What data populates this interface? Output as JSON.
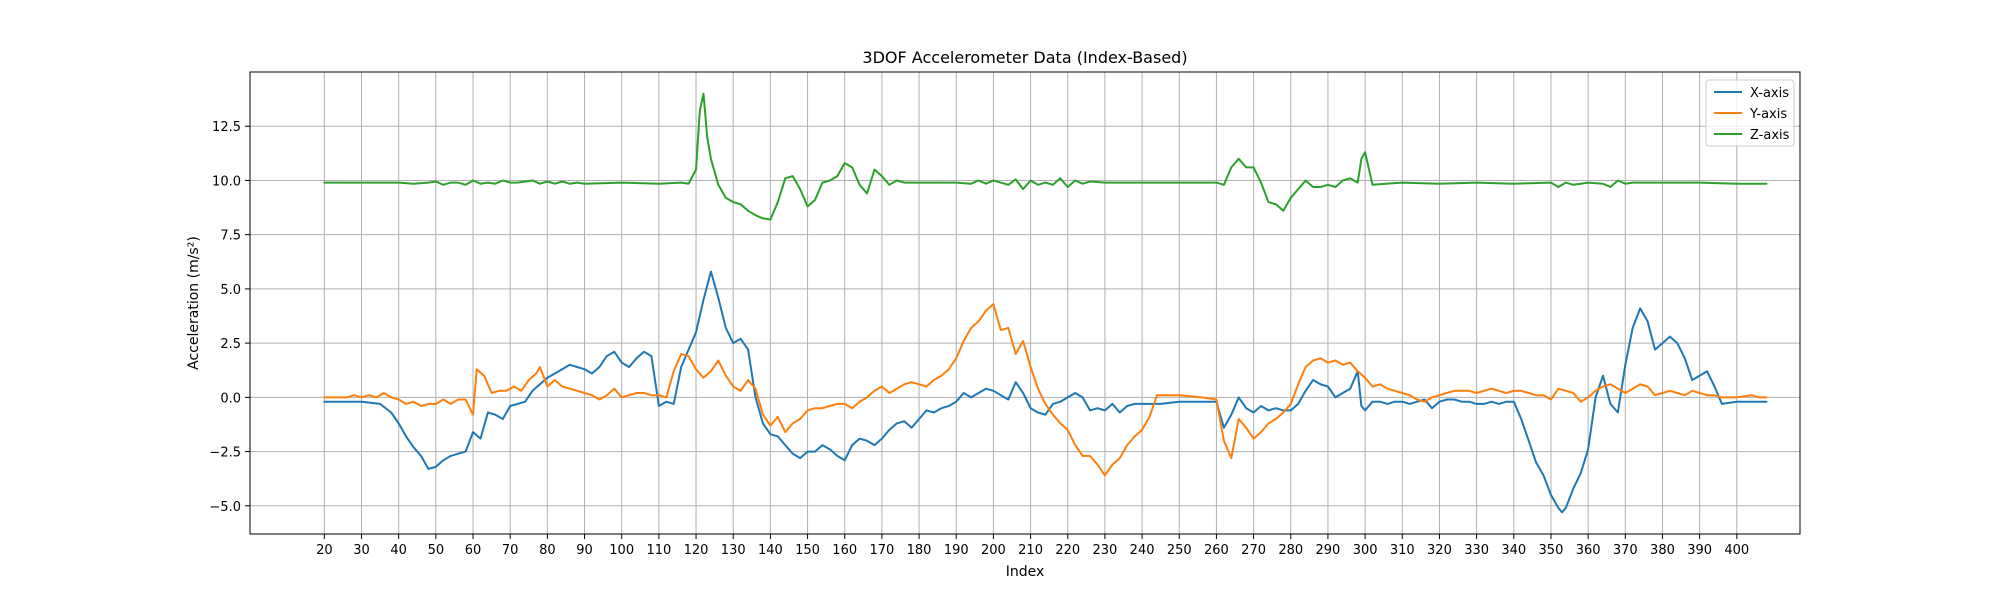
{
  "chart_data": {
    "type": "line",
    "title": "3DOF Accelerometer Data (Index-Based)",
    "xlabel": "Index",
    "ylabel": "Acceleration (m/s²)",
    "xlim": [
      0,
      417
    ],
    "ylim": [
      -6.3,
      15.0
    ],
    "xticks": [
      20,
      30,
      40,
      50,
      60,
      70,
      80,
      90,
      100,
      110,
      120,
      130,
      140,
      150,
      160,
      170,
      180,
      190,
      200,
      210,
      220,
      230,
      240,
      250,
      260,
      270,
      280,
      290,
      300,
      310,
      320,
      330,
      340,
      350,
      360,
      370,
      380,
      390,
      400
    ],
    "yticks": [
      -5.0,
      -2.5,
      0.0,
      2.5,
      5.0,
      7.5,
      10.0,
      12.5
    ],
    "ytick_labels": [
      "−5.0",
      "−2.5",
      "0.0",
      "2.5",
      "5.0",
      "7.5",
      "10.0",
      "12.5"
    ],
    "grid": true,
    "legend_position": "upper right",
    "series": [
      {
        "name": "X-axis",
        "color": "#1f77b4",
        "x": [
          20,
          30,
          35,
          38,
          40,
          42,
          44,
          46,
          48,
          50,
          52,
          54,
          56,
          58,
          60,
          62,
          64,
          66,
          68,
          70,
          72,
          74,
          76,
          78,
          80,
          82,
          84,
          86,
          88,
          90,
          92,
          94,
          96,
          98,
          100,
          102,
          104,
          106,
          108,
          110,
          112,
          114,
          116,
          118,
          120,
          122,
          124,
          126,
          128,
          130,
          132,
          134,
          136,
          138,
          140,
          142,
          144,
          146,
          148,
          150,
          152,
          154,
          156,
          158,
          160,
          162,
          164,
          166,
          168,
          170,
          172,
          174,
          176,
          178,
          180,
          182,
          184,
          186,
          188,
          190,
          192,
          194,
          196,
          198,
          200,
          202,
          204,
          206,
          208,
          210,
          212,
          214,
          216,
          218,
          220,
          222,
          224,
          226,
          228,
          230,
          232,
          234,
          236,
          238,
          240,
          245,
          250,
          255,
          260,
          262,
          264,
          266,
          268,
          270,
          272,
          274,
          276,
          278,
          280,
          282,
          284,
          286,
          288,
          290,
          292,
          294,
          296,
          298,
          299,
          300,
          302,
          304,
          306,
          308,
          310,
          312,
          314,
          316,
          318,
          320,
          322,
          324,
          326,
          328,
          330,
          332,
          334,
          336,
          338,
          340,
          342,
          344,
          346,
          348,
          350,
          352,
          353,
          354,
          356,
          358,
          360,
          362,
          364,
          366,
          368,
          370,
          372,
          374,
          376,
          378,
          380,
          382,
          384,
          386,
          388,
          390,
          392,
          394,
          396,
          400,
          408
        ],
        "values": [
          -0.2,
          -0.2,
          -0.3,
          -0.7,
          -1.2,
          -1.8,
          -2.3,
          -2.7,
          -3.3,
          -3.2,
          -2.9,
          -2.7,
          -2.6,
          -2.5,
          -1.6,
          -1.9,
          -0.7,
          -0.8,
          -1.0,
          -0.4,
          -0.3,
          -0.2,
          0.3,
          0.6,
          0.9,
          1.1,
          1.3,
          1.5,
          1.4,
          1.3,
          1.1,
          1.4,
          1.9,
          2.1,
          1.6,
          1.4,
          1.8,
          2.1,
          1.9,
          -0.4,
          -0.2,
          -0.3,
          1.4,
          2.2,
          3.0,
          4.5,
          5.8,
          4.6,
          3.2,
          2.5,
          2.7,
          2.2,
          0.0,
          -1.2,
          -1.7,
          -1.8,
          -2.2,
          -2.6,
          -2.8,
          -2.5,
          -2.5,
          -2.2,
          -2.4,
          -2.7,
          -2.9,
          -2.2,
          -1.9,
          -2.0,
          -2.2,
          -1.9,
          -1.5,
          -1.2,
          -1.1,
          -1.4,
          -1.0,
          -0.6,
          -0.7,
          -0.5,
          -0.4,
          -0.2,
          0.2,
          0.0,
          0.2,
          0.4,
          0.3,
          0.1,
          -0.1,
          0.7,
          0.2,
          -0.5,
          -0.7,
          -0.8,
          -0.3,
          -0.2,
          0.0,
          0.2,
          0.0,
          -0.6,
          -0.5,
          -0.6,
          -0.3,
          -0.7,
          -0.4,
          -0.3,
          -0.3,
          -0.3,
          -0.2,
          -0.2,
          -0.2,
          -1.4,
          -0.8,
          0.0,
          -0.5,
          -0.7,
          -0.4,
          -0.6,
          -0.5,
          -0.6,
          -0.6,
          -0.3,
          0.3,
          0.8,
          0.6,
          0.5,
          0.0,
          0.2,
          0.4,
          1.2,
          -0.4,
          -0.6,
          -0.2,
          -0.2,
          -0.3,
          -0.2,
          -0.2,
          -0.3,
          -0.2,
          -0.1,
          -0.5,
          -0.2,
          -0.1,
          -0.1,
          -0.2,
          -0.2,
          -0.3,
          -0.3,
          -0.2,
          -0.3,
          -0.2,
          -0.2,
          -1.0,
          -2.0,
          -3.0,
          -3.6,
          -4.5,
          -5.1,
          -5.3,
          -5.1,
          -4.2,
          -3.5,
          -2.4,
          0.0,
          1.0,
          -0.3,
          -0.7,
          1.5,
          3.2,
          4.1,
          3.5,
          2.2,
          2.5,
          2.8,
          2.5,
          1.8,
          0.8,
          1.0,
          1.2,
          0.5,
          -0.3,
          -0.2,
          -0.2
        ],
        "note_interp": "linear"
      },
      {
        "name": "Y-axis",
        "color": "#ff7f0e",
        "x": [
          20,
          26,
          28,
          30,
          32,
          34,
          36,
          38,
          40,
          42,
          44,
          46,
          48,
          50,
          52,
          54,
          56,
          58,
          60,
          61,
          63,
          65,
          67,
          69,
          71,
          73,
          75,
          77,
          78,
          80,
          82,
          84,
          86,
          88,
          90,
          92,
          94,
          96,
          98,
          100,
          102,
          104,
          106,
          108,
          110,
          112,
          114,
          116,
          118,
          120,
          122,
          124,
          126,
          128,
          130,
          132,
          134,
          136,
          138,
          140,
          142,
          144,
          146,
          148,
          150,
          152,
          154,
          156,
          158,
          160,
          162,
          164,
          166,
          168,
          170,
          172,
          174,
          176,
          178,
          180,
          182,
          184,
          186,
          188,
          190,
          192,
          194,
          196,
          198,
          200,
          202,
          204,
          206,
          208,
          210,
          212,
          214,
          216,
          218,
          220,
          222,
          224,
          226,
          228,
          230,
          232,
          234,
          236,
          238,
          240,
          242,
          244,
          246,
          250,
          256,
          260,
          262,
          264,
          266,
          268,
          270,
          272,
          274,
          276,
          278,
          280,
          282,
          284,
          286,
          288,
          290,
          292,
          294,
          296,
          298,
          300,
          302,
          304,
          306,
          308,
          310,
          312,
          314,
          316,
          318,
          320,
          322,
          324,
          326,
          328,
          330,
          332,
          334,
          336,
          338,
          340,
          342,
          344,
          346,
          348,
          350,
          352,
          354,
          356,
          358,
          360,
          362,
          364,
          366,
          368,
          370,
          372,
          374,
          376,
          378,
          380,
          382,
          384,
          386,
          388,
          390,
          392,
          394,
          396,
          400,
          404,
          406,
          408
        ],
        "values": [
          0.0,
          0.0,
          0.1,
          0.0,
          0.1,
          0.0,
          0.2,
          0.0,
          -0.1,
          -0.3,
          -0.2,
          -0.4,
          -0.3,
          -0.3,
          -0.1,
          -0.3,
          -0.1,
          -0.1,
          -0.8,
          1.3,
          1.0,
          0.2,
          0.3,
          0.3,
          0.5,
          0.3,
          0.8,
          1.1,
          1.4,
          0.5,
          0.8,
          0.5,
          0.4,
          0.3,
          0.2,
          0.1,
          -0.1,
          0.1,
          0.4,
          0.0,
          0.1,
          0.2,
          0.2,
          0.1,
          0.1,
          0.0,
          1.2,
          2.0,
          1.9,
          1.3,
          0.9,
          1.2,
          1.7,
          1.0,
          0.5,
          0.3,
          0.8,
          0.4,
          -0.8,
          -1.3,
          -0.9,
          -1.6,
          -1.2,
          -1.0,
          -0.6,
          -0.5,
          -0.5,
          -0.4,
          -0.3,
          -0.3,
          -0.5,
          -0.2,
          0.0,
          0.3,
          0.5,
          0.2,
          0.4,
          0.6,
          0.7,
          0.6,
          0.5,
          0.8,
          1.0,
          1.3,
          1.8,
          2.6,
          3.2,
          3.5,
          4.0,
          4.3,
          3.1,
          3.2,
          2.0,
          2.6,
          1.4,
          0.4,
          -0.3,
          -0.8,
          -1.2,
          -1.5,
          -2.2,
          -2.7,
          -2.7,
          -3.1,
          -3.6,
          -3.1,
          -2.8,
          -2.2,
          -1.8,
          -1.5,
          -0.9,
          0.1,
          0.1,
          0.1,
          0.0,
          -0.1,
          -2.0,
          -2.8,
          -1.0,
          -1.4,
          -1.9,
          -1.6,
          -1.2,
          -1.0,
          -0.7,
          -0.3,
          0.6,
          1.4,
          1.7,
          1.8,
          1.6,
          1.7,
          1.5,
          1.6,
          1.2,
          0.9,
          0.5,
          0.6,
          0.4,
          0.3,
          0.2,
          0.1,
          -0.1,
          -0.2,
          0.0,
          0.1,
          0.2,
          0.3,
          0.3,
          0.3,
          0.2,
          0.3,
          0.4,
          0.3,
          0.2,
          0.3,
          0.3,
          0.2,
          0.1,
          0.1,
          -0.1,
          0.4,
          0.3,
          0.2,
          -0.2,
          0.0,
          0.3,
          0.5,
          0.6,
          0.4,
          0.2,
          0.4,
          0.6,
          0.5,
          0.1,
          0.2,
          0.3,
          0.2,
          0.1,
          0.3,
          0.2,
          0.1,
          0.1,
          0.0,
          0.0,
          0.1,
          0.0,
          0.0
        ],
        "note_interp": "linear"
      },
      {
        "name": "Z-axis",
        "color": "#2ca02c",
        "x": [
          20,
          30,
          40,
          44,
          48,
          50,
          52,
          54,
          56,
          58,
          60,
          62,
          64,
          66,
          68,
          70,
          72,
          74,
          76,
          78,
          80,
          82,
          84,
          86,
          88,
          90,
          100,
          110,
          116,
          118,
          120,
          121,
          122,
          123,
          124,
          126,
          128,
          130,
          132,
          134,
          136,
          138,
          140,
          142,
          144,
          146,
          148,
          150,
          152,
          154,
          156,
          158,
          160,
          162,
          164,
          165,
          166,
          168,
          170,
          172,
          174,
          176,
          180,
          190,
          194,
          196,
          198,
          200,
          202,
          204,
          206,
          208,
          210,
          212,
          214,
          216,
          218,
          220,
          222,
          224,
          226,
          230,
          240,
          250,
          260,
          262,
          264,
          266,
          268,
          270,
          272,
          274,
          276,
          278,
          280,
          282,
          284,
          286,
          288,
          290,
          292,
          294,
          296,
          298,
          299,
          300,
          302,
          310,
          320,
          330,
          340,
          350,
          352,
          354,
          356,
          358,
          360,
          364,
          366,
          368,
          370,
          372,
          380,
          390,
          400,
          408
        ],
        "values": [
          9.9,
          9.9,
          9.9,
          9.85,
          9.9,
          9.95,
          9.8,
          9.9,
          9.9,
          9.8,
          10.0,
          9.85,
          9.9,
          9.85,
          10.0,
          9.9,
          9.9,
          9.95,
          10.0,
          9.85,
          9.95,
          9.85,
          9.95,
          9.85,
          9.9,
          9.85,
          9.9,
          9.85,
          9.9,
          9.85,
          10.5,
          13.2,
          14.0,
          12.0,
          11.0,
          9.8,
          9.2,
          9.0,
          8.9,
          8.6,
          8.4,
          8.25,
          8.2,
          9.0,
          10.1,
          10.2,
          9.6,
          8.8,
          9.1,
          9.9,
          10.0,
          10.2,
          10.8,
          10.6,
          9.8,
          9.6,
          9.4,
          10.5,
          10.2,
          9.8,
          10.0,
          9.9,
          9.9,
          9.9,
          9.85,
          10.0,
          9.85,
          10.0,
          9.9,
          9.8,
          10.05,
          9.6,
          10.0,
          9.8,
          9.9,
          9.8,
          10.1,
          9.7,
          10.0,
          9.85,
          9.95,
          9.9,
          9.9,
          9.9,
          9.9,
          9.8,
          10.6,
          11.0,
          10.6,
          10.6,
          9.9,
          9.0,
          8.9,
          8.6,
          9.2,
          9.6,
          10.0,
          9.7,
          9.7,
          9.8,
          9.7,
          10.0,
          10.1,
          9.9,
          11.0,
          11.3,
          9.8,
          9.9,
          9.85,
          9.9,
          9.85,
          9.9,
          9.7,
          9.9,
          9.8,
          9.85,
          9.9,
          9.85,
          9.7,
          10.0,
          9.85,
          9.9,
          9.9,
          9.9,
          9.85,
          9.85
        ],
        "note_interp": "linear"
      }
    ]
  }
}
